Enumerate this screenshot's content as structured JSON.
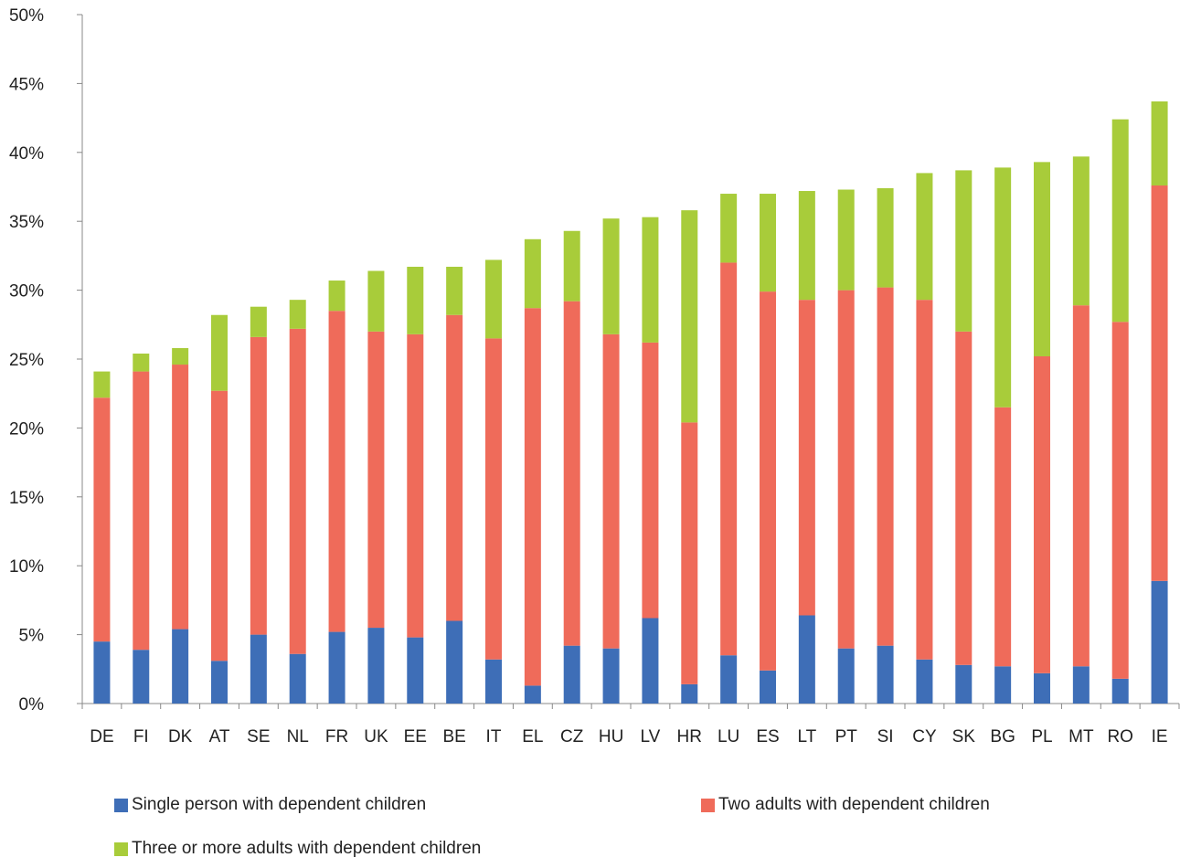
{
  "chart_data": {
    "type": "bar",
    "stacked": true,
    "title": "",
    "xlabel": "",
    "ylabel": "",
    "ylim": [
      0,
      50
    ],
    "y_ticks": [
      "0%",
      "5%",
      "10%",
      "15%",
      "20%",
      "25%",
      "30%",
      "35%",
      "40%",
      "45%",
      "50%"
    ],
    "grid": false,
    "legend_position": "bottom",
    "categories": [
      "DE",
      "FI",
      "DK",
      "AT",
      "SE",
      "NL",
      "FR",
      "UK",
      "EE",
      "BE",
      "IT",
      "EL",
      "CZ",
      "HU",
      "LV",
      "HR",
      "LU",
      "ES",
      "LT",
      "PT",
      "SI",
      "CY",
      "SK",
      "BG",
      "PL",
      "MT",
      "RO",
      "IE"
    ],
    "series": [
      {
        "name": "Single person with dependent children",
        "color": "#3e6eb7",
        "values": [
          4.5,
          3.9,
          5.4,
          3.1,
          5.0,
          3.6,
          5.2,
          5.5,
          4.8,
          6.0,
          3.2,
          1.3,
          4.2,
          4.0,
          6.2,
          1.4,
          3.5,
          2.4,
          6.4,
          4.0,
          4.2,
          3.2,
          2.8,
          2.7,
          2.2,
          2.7,
          1.8,
          8.9
        ]
      },
      {
        "name": "Two adults with dependent children",
        "color": "#ef6b5a",
        "values": [
          17.7,
          20.2,
          19.2,
          19.6,
          21.6,
          23.6,
          23.3,
          21.5,
          22.0,
          22.2,
          23.3,
          27.4,
          25.0,
          22.8,
          20.0,
          19.0,
          28.5,
          27.5,
          22.9,
          26.0,
          26.0,
          26.1,
          24.2,
          18.8,
          23.0,
          26.2,
          25.9,
          28.7
        ]
      },
      {
        "name": "Three or more adults with dependent children",
        "color": "#a8cc3a",
        "values": [
          1.9,
          1.3,
          1.2,
          5.5,
          2.2,
          2.1,
          2.2,
          4.4,
          4.9,
          3.5,
          5.7,
          5.0,
          5.1,
          8.4,
          9.1,
          15.4,
          5.0,
          7.1,
          7.9,
          7.3,
          7.2,
          9.2,
          11.7,
          17.4,
          14.1,
          10.8,
          14.7,
          6.1
        ]
      }
    ]
  }
}
